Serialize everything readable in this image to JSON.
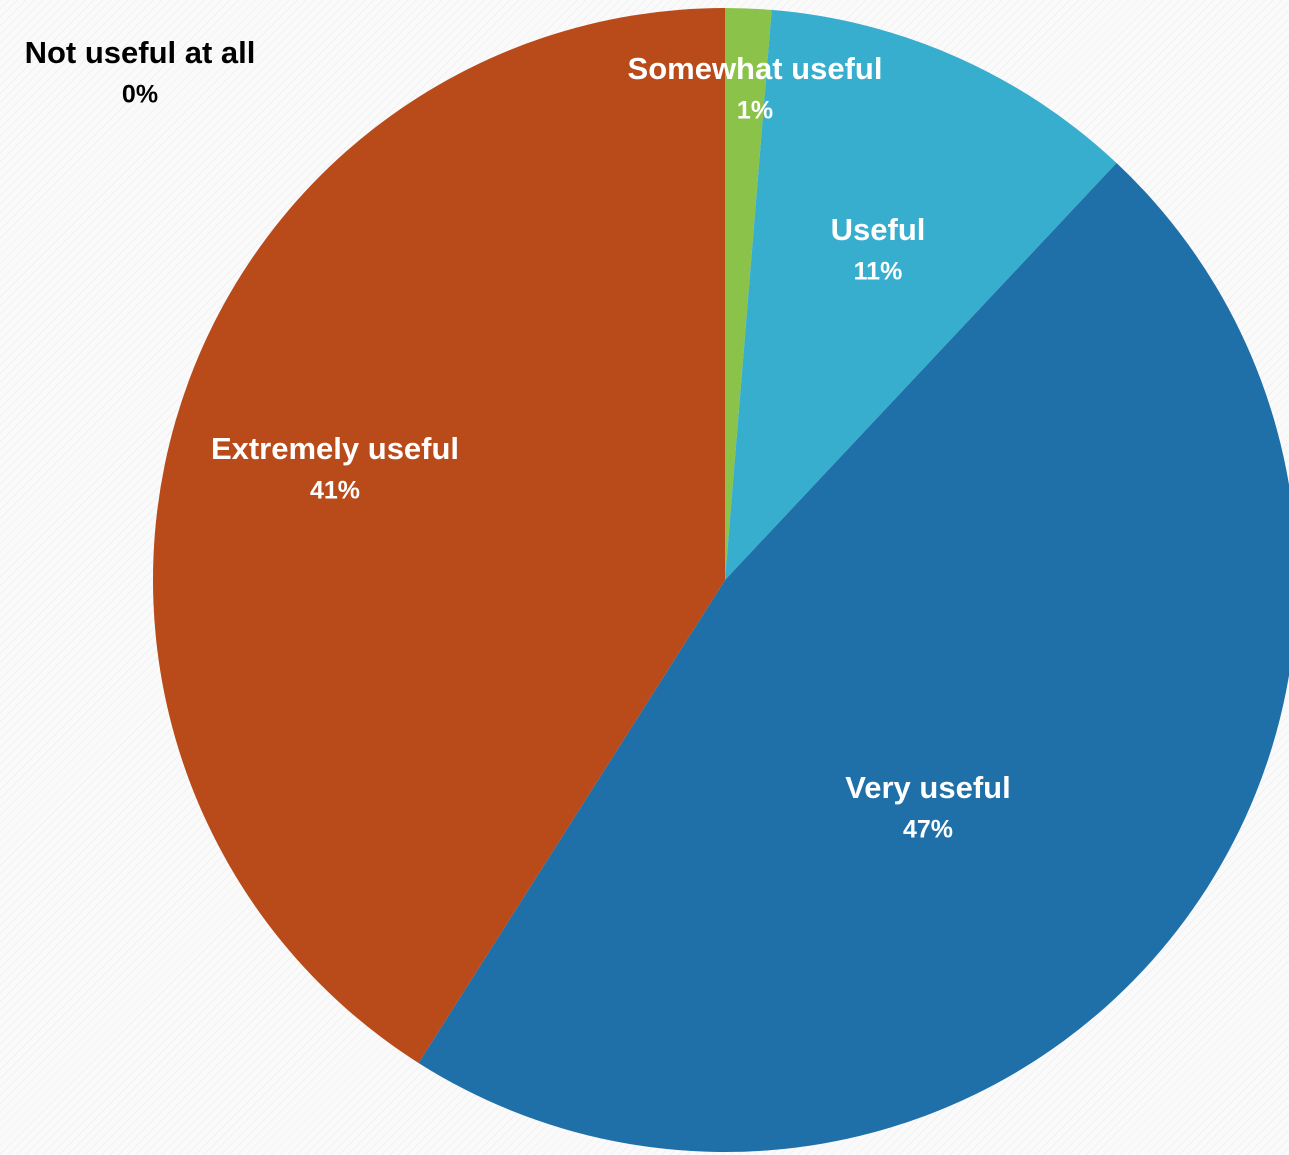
{
  "chart_data": {
    "type": "pie",
    "slices": [
      {
        "name": "Not useful at all",
        "value": 0,
        "label": "0%",
        "color": "#000000"
      },
      {
        "name": "Somewhat useful",
        "value": 1.3,
        "label": "1%",
        "color": "#8bc34a"
      },
      {
        "name": "Useful",
        "value": 10.7,
        "label": "11%",
        "color": "#38aecf"
      },
      {
        "name": "Very useful",
        "value": 47,
        "label": "47%",
        "color": "#1f6fa8"
      },
      {
        "name": "Extremely useful",
        "value": 41,
        "label": "41%",
        "color": "#b94a1a"
      }
    ]
  }
}
